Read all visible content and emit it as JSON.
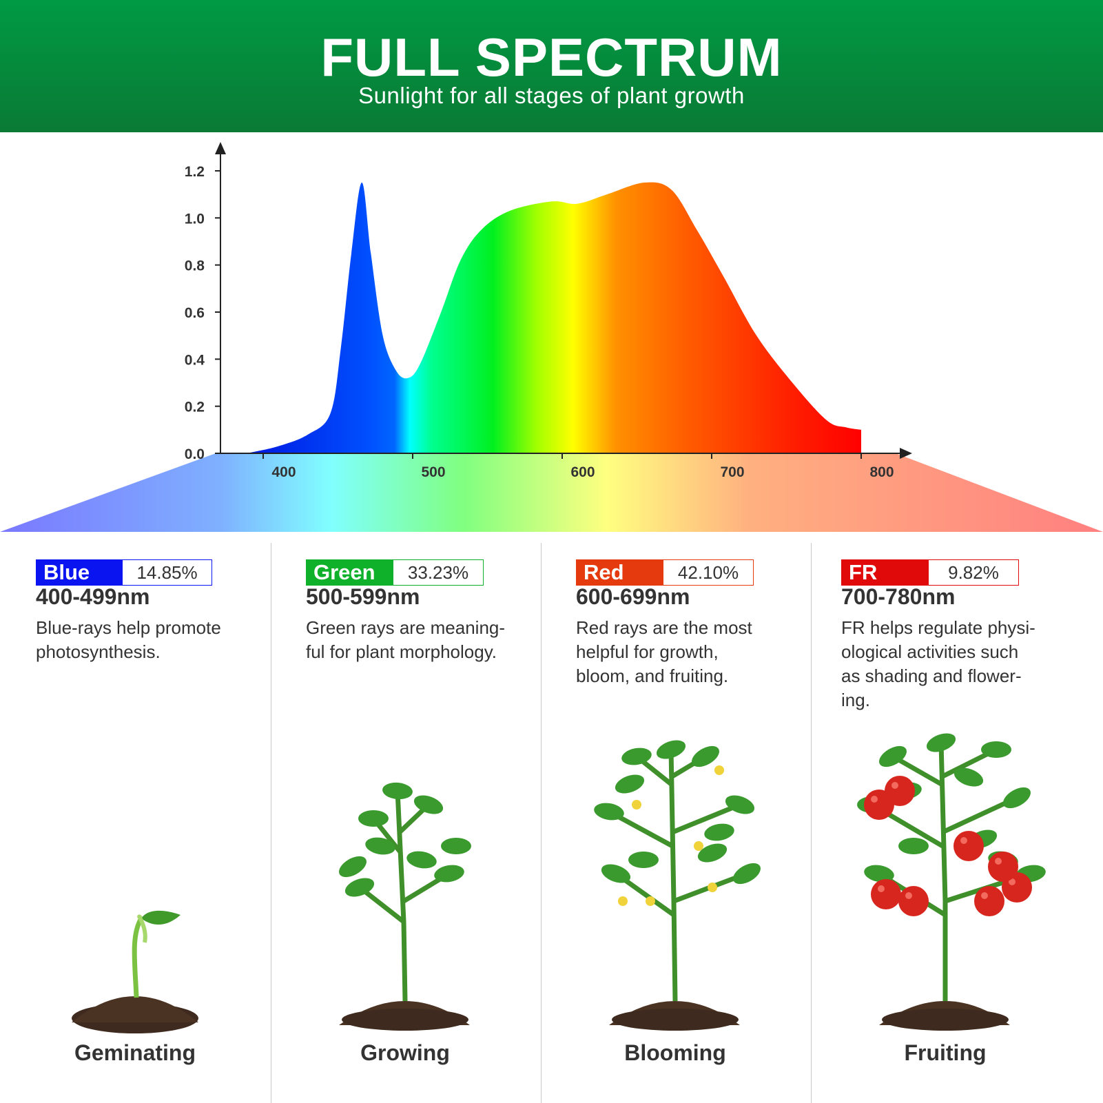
{
  "header": {
    "title": "FULL SPECTRUM",
    "subtitle": "Sunlight for all stages of plant growth"
  },
  "chart_data": {
    "type": "area",
    "title": "",
    "xlabel": "",
    "ylabel": "",
    "xlim": [
      370,
      820
    ],
    "ylim": [
      0,
      1.28
    ],
    "x_ticks": [
      400,
      500,
      600,
      700,
      800
    ],
    "y_ticks": [
      0.0,
      0.2,
      0.4,
      0.6,
      0.8,
      1.0,
      1.2
    ],
    "x_tick_labels": [
      "400",
      "500",
      "600",
      "700",
      "800"
    ],
    "y_tick_labels": [
      "0.0",
      "0.2",
      "0.4",
      "0.6",
      "0.8",
      "1.0",
      "1.2"
    ],
    "grid": false,
    "fill": "visible-spectrum gradient",
    "points": [
      [
        389,
        0.0
      ],
      [
        410,
        0.03
      ],
      [
        430,
        0.08
      ],
      [
        445,
        0.17
      ],
      [
        452,
        0.45
      ],
      [
        459,
        0.85
      ],
      [
        466,
        1.15
      ],
      [
        472,
        0.85
      ],
      [
        480,
        0.5
      ],
      [
        489,
        0.35
      ],
      [
        497,
        0.32
      ],
      [
        505,
        0.38
      ],
      [
        519,
        0.6
      ],
      [
        532,
        0.82
      ],
      [
        546,
        0.95
      ],
      [
        565,
        1.03
      ],
      [
        593,
        1.07
      ],
      [
        610,
        1.06
      ],
      [
        630,
        1.1
      ],
      [
        655,
        1.15
      ],
      [
        673,
        1.12
      ],
      [
        690,
        0.95
      ],
      [
        708,
        0.75
      ],
      [
        730,
        0.5
      ],
      [
        754,
        0.3
      ],
      [
        777,
        0.14
      ],
      [
        790,
        0.11
      ],
      [
        800,
        0.1
      ]
    ]
  },
  "bands": [
    {
      "name": "Blue",
      "percent": "14.85%",
      "range": "400-499nm",
      "desc_lines": [
        "Blue-rays help promote",
        "photosynthesis."
      ],
      "stage": "Geminating",
      "color": "#0a14f0"
    },
    {
      "name": "Green",
      "percent": "33.23%",
      "range": "500-599nm",
      "desc_lines": [
        "Green rays are meaning-",
        "ful for plant morphology."
      ],
      "stage": "Growing",
      "color": "#0fb12a"
    },
    {
      "name": "Red",
      "percent": "42.10%",
      "range": "600-699nm",
      "desc_lines": [
        "Red rays are the most",
        "helpful for growth,",
        "bloom, and fruiting."
      ],
      "stage": "Blooming",
      "color": "#e43a0e"
    },
    {
      "name": "FR",
      "percent": "9.82%",
      "range": "700-780nm",
      "desc_lines": [
        "FR helps regulate physi-",
        "ological activities such",
        "as shading and flower-",
        "ing."
      ],
      "stage": "Fruiting",
      "color": "#e00a0a"
    }
  ]
}
